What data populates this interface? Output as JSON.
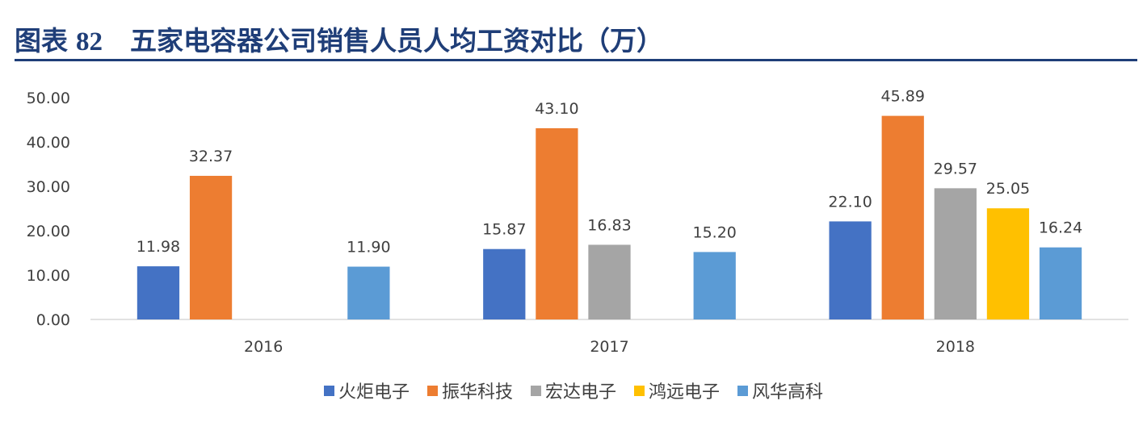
{
  "header": {
    "label": "图表",
    "number": "82",
    "title": "五家电容器公司销售人员人均工资对比（万）"
  },
  "chart_data": {
    "type": "bar",
    "categories": [
      "2016",
      "2017",
      "2018"
    ],
    "ylim": [
      0,
      50
    ],
    "yticks": [
      "0.00",
      "10.00",
      "20.00",
      "30.00",
      "40.00",
      "50.00"
    ],
    "grid": false,
    "legend_position": "bottom",
    "series": [
      {
        "name": "火炬电子",
        "color": "#4472c4",
        "values": [
          11.98,
          15.87,
          22.1
        ],
        "labels": [
          "11.98",
          "15.87",
          "22.10"
        ]
      },
      {
        "name": "振华科技",
        "color": "#ed7d31",
        "values": [
          32.37,
          43.1,
          45.89
        ],
        "labels": [
          "32.37",
          "43.10",
          "45.89"
        ]
      },
      {
        "name": "宏达电子",
        "color": "#a5a5a5",
        "values": [
          null,
          16.83,
          29.57
        ],
        "labels": [
          null,
          "16.83",
          "29.57"
        ]
      },
      {
        "name": "鸿远电子",
        "color": "#ffc000",
        "values": [
          null,
          null,
          25.05
        ],
        "labels": [
          null,
          null,
          "25.05"
        ]
      },
      {
        "name": "风华高科",
        "color": "#5b9bd5",
        "values": [
          11.9,
          15.2,
          16.24
        ],
        "labels": [
          "11.90",
          "15.20",
          "16.24"
        ]
      }
    ]
  }
}
